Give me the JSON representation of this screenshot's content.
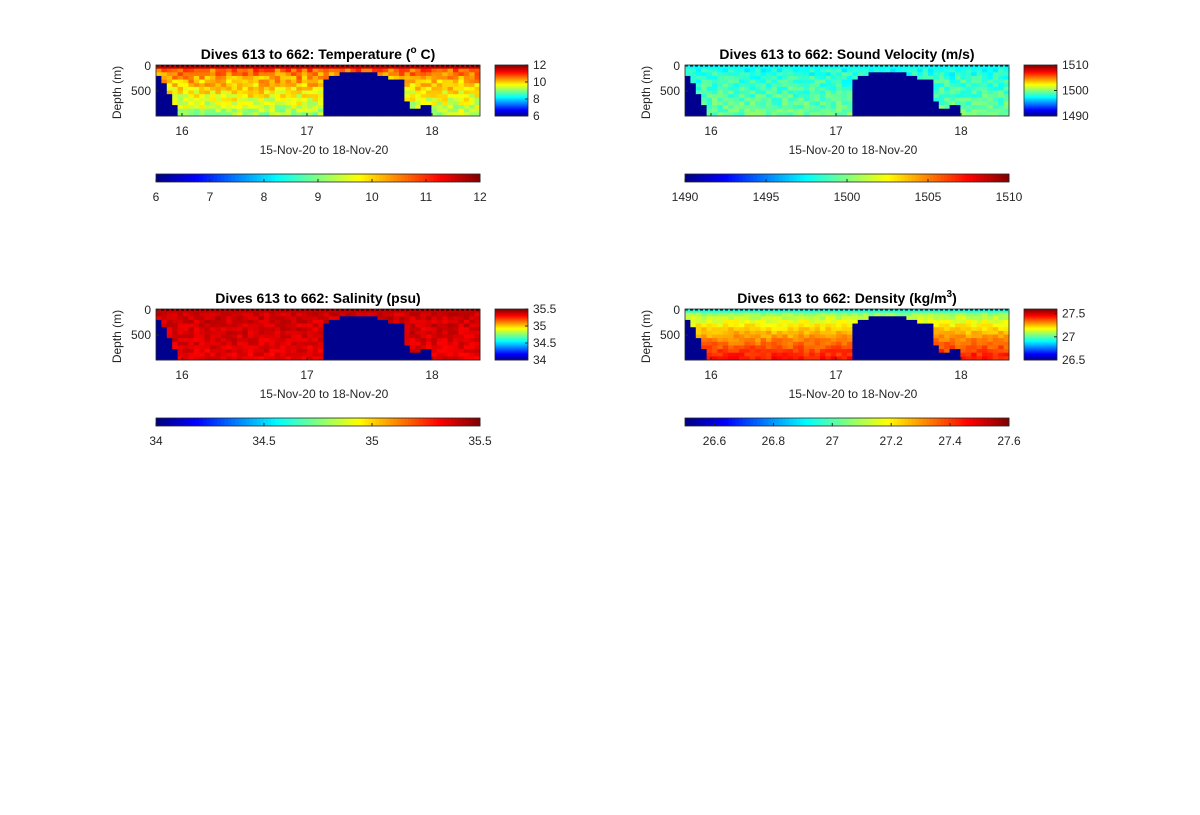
{
  "figure": {
    "background": "#ffffff"
  },
  "colormap": "jet",
  "chart_data": [
    {
      "type": "heatmap",
      "variable": "temperature",
      "title": "Dives 613 to 662: Temperature (",
      "title_sup": "o",
      "title_tail": " C)",
      "xlabel": "15-Nov-20 to 18-Nov-20",
      "ylabel": "Depth (m)",
      "x_ticks": [
        "16",
        "17",
        "18"
      ],
      "y_ticks": [
        "0",
        "500"
      ],
      "xlim": [
        "15-Nov-20 18:00",
        "18-Nov-20 09:00"
      ],
      "ylim": [
        950,
        0
      ],
      "clim": [
        6,
        12
      ],
      "colorbar_ticks": [
        "12",
        "10",
        "8",
        "6"
      ],
      "horizontal_colorbar_ticks": [
        "6",
        "7",
        "8",
        "9",
        "10",
        "11",
        "12"
      ],
      "surface_value": 11.2,
      "deep_value": 9.2,
      "noise": 0.45,
      "no_data_color": "#00008f"
    },
    {
      "type": "heatmap",
      "variable": "sound velocity",
      "title": "Dives 613 to 662: Sound Velocity (m/s)",
      "title_sup": "",
      "title_tail": "",
      "xlabel": "15-Nov-20 to 18-Nov-20",
      "ylabel": "Depth (m)",
      "x_ticks": [
        "16",
        "17",
        "18"
      ],
      "y_ticks": [
        "0",
        "500"
      ],
      "xlim": [
        "15-Nov-20 18:00",
        "18-Nov-20 09:00"
      ],
      "ylim": [
        950,
        0
      ],
      "clim": [
        1490,
        1510
      ],
      "colorbar_ticks": [
        "1510",
        "1500",
        "1490"
      ],
      "horizontal_colorbar_ticks": [
        "1490",
        "1495",
        "1500",
        "1505",
        "1510"
      ],
      "surface_value": 1497.5,
      "deep_value": 1499.5,
      "noise": 1.1,
      "no_data_color": "#00008f"
    },
    {
      "type": "heatmap",
      "variable": "salinity",
      "title": "Dives 613 to 662: Salinity (psu)",
      "title_sup": "",
      "title_tail": "",
      "xlabel": "15-Nov-20 to 18-Nov-20",
      "ylabel": "Depth (m)",
      "x_ticks": [
        "16",
        "17",
        "18"
      ],
      "y_ticks": [
        "0",
        "500"
      ],
      "xlim": [
        "15-Nov-20 18:00",
        "18-Nov-20 09:00"
      ],
      "ylim": [
        950,
        0
      ],
      "clim": [
        34,
        35.5
      ],
      "colorbar_ticks": [
        "35.5",
        "35",
        "34.5",
        "34"
      ],
      "horizontal_colorbar_ticks": [
        "34",
        "34.5",
        "35",
        "35.5"
      ],
      "surface_value": 35.4,
      "deep_value": 35.35,
      "noise": 0.05,
      "no_data_color": "#00008f"
    },
    {
      "type": "heatmap",
      "variable": "density",
      "title": "Dives 613 to 662: Density (kg/m",
      "title_sup": "3",
      "title_tail": ")",
      "xlabel": "15-Nov-20 to 18-Nov-20",
      "ylabel": "Depth (m)",
      "x_ticks": [
        "16",
        "17",
        "18"
      ],
      "y_ticks": [
        "0",
        "500"
      ],
      "xlim": [
        "15-Nov-20 18:00",
        "18-Nov-20 09:00"
      ],
      "ylim": [
        950,
        0
      ],
      "clim": [
        26.5,
        27.6
      ],
      "colorbar_ticks": [
        "27.5",
        "27",
        "26.5"
      ],
      "horizontal_colorbar_ticks": [
        "26.6",
        "26.8",
        "27",
        "27.2",
        "27.4",
        "27.6"
      ],
      "surface_value": 26.95,
      "deep_value": 27.45,
      "noise": 0.04,
      "no_data_color": "#00008f"
    }
  ]
}
